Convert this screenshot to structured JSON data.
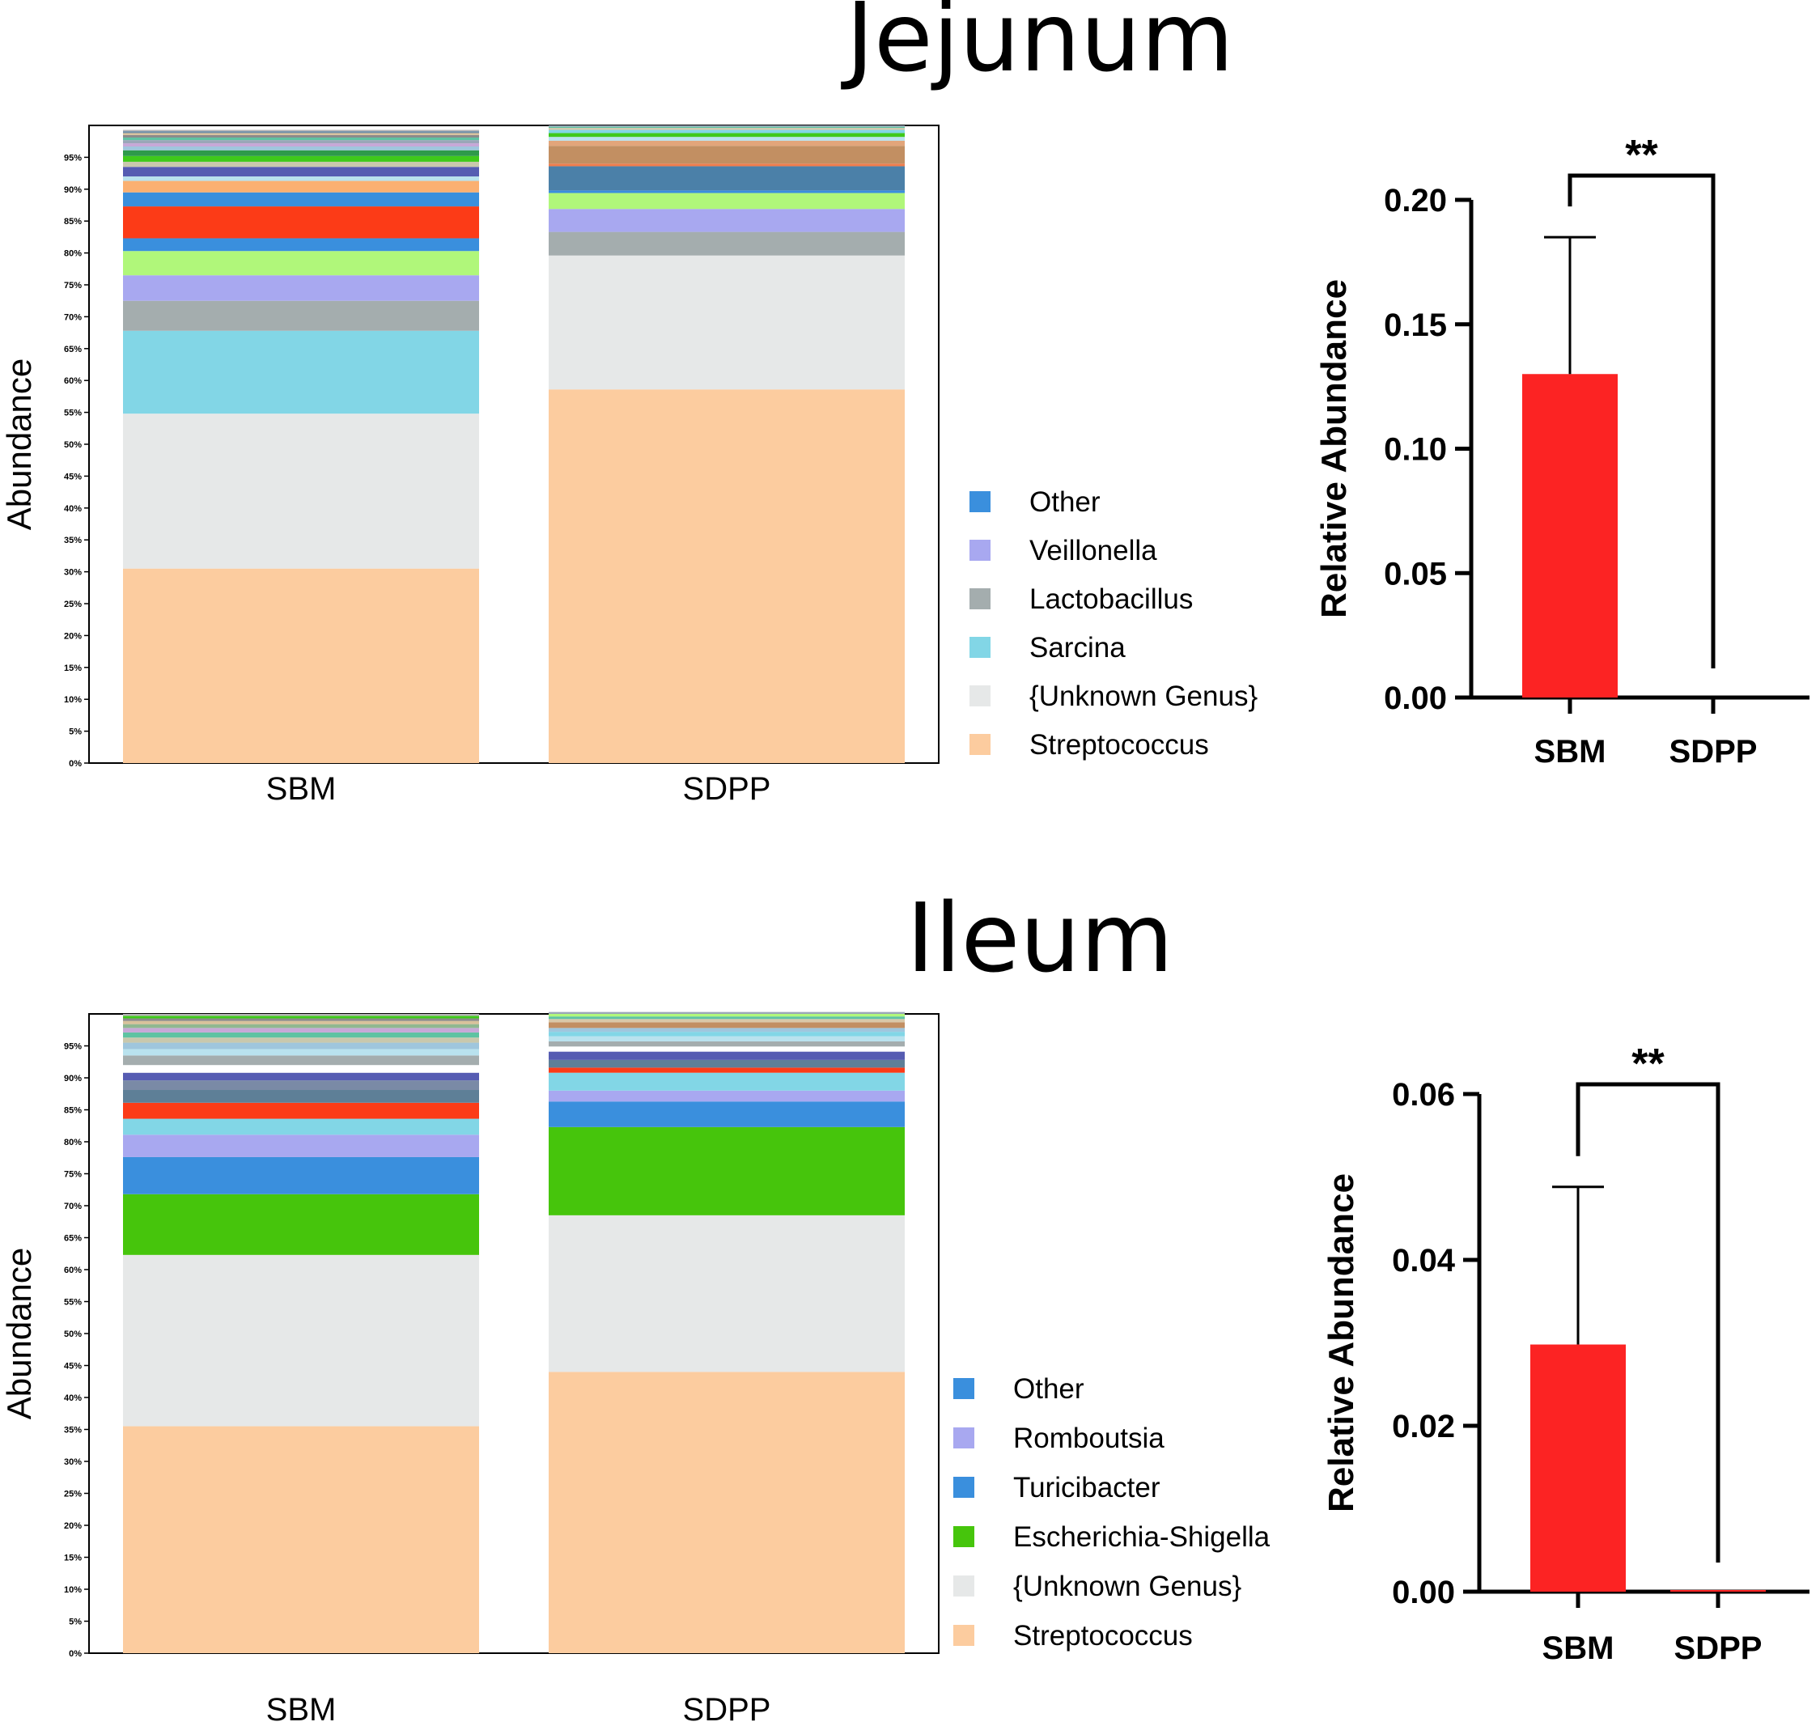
{
  "panels": [
    {
      "title": "Jejunum",
      "stacked": {
        "ylabel": "Abundance",
        "yticks": [
          "0%",
          "5%",
          "10%",
          "15%",
          "20%",
          "25%",
          "30%",
          "35%",
          "40%",
          "45%",
          "50%",
          "55%",
          "60%",
          "65%",
          "70%",
          "75%",
          "80%",
          "85%",
          "90%",
          "95%"
        ],
        "categories": [
          "SBM",
          "SDPP"
        ],
        "legend": [
          {
            "label": "Other",
            "color": "#3a8fdd"
          },
          {
            "label": "Veillonella",
            "color": "#a8a8f0"
          },
          {
            "label": "Lactobacillus",
            "color": "#a4adae"
          },
          {
            "label": "Sarcina",
            "color": "#82d6e6"
          },
          {
            "label": "{Unknown Genus}",
            "color": "#e6e8e8"
          },
          {
            "label": "Streptococcus",
            "color": "#fccc9f"
          }
        ],
        "stacks": [
          [
            {
              "v": 30.5,
              "c": "#fccc9f"
            },
            {
              "v": 24.3,
              "c": "#e6e8e8"
            },
            {
              "v": 13.0,
              "c": "#82d6e6"
            },
            {
              "v": 4.7,
              "c": "#a4adae"
            },
            {
              "v": 4.0,
              "c": "#a8a8f0"
            },
            {
              "v": 3.8,
              "c": "#b0f77a"
            },
            {
              "v": 2.0,
              "c": "#3a8fdd"
            },
            {
              "v": 5.0,
              "c": "#fc3b17"
            },
            {
              "v": 2.2,
              "c": "#3a8fdd"
            },
            {
              "v": 1.8,
              "c": "#fbb071"
            },
            {
              "v": 0.7,
              "c": "#b9e2ee"
            },
            {
              "v": 1.5,
              "c": "#565cb2"
            },
            {
              "v": 0.8,
              "c": "#c9c8ad"
            },
            {
              "v": 0.9,
              "c": "#3fc91a"
            },
            {
              "v": 0.9,
              "c": "#2e9a4a"
            },
            {
              "v": 0.6,
              "c": "#9fc6dd"
            },
            {
              "v": 0.5,
              "c": "#c7a8d7"
            },
            {
              "v": 0.5,
              "c": "#9aa6b8"
            },
            {
              "v": 0.4,
              "c": "#5ec3a2"
            },
            {
              "v": 0.4,
              "c": "#8a8a8a"
            },
            {
              "v": 0.3,
              "c": "#d8c19a"
            },
            {
              "v": 0.3,
              "c": "#6f8fa8"
            },
            {
              "v": 0.2,
              "c": "#b5b5b5"
            }
          ],
          [
            {
              "v": 58.6,
              "c": "#fccc9f"
            },
            {
              "v": 21.0,
              "c": "#e6e8e8"
            },
            {
              "v": 3.7,
              "c": "#a4adae"
            },
            {
              "v": 3.6,
              "c": "#a8a8f0"
            },
            {
              "v": 2.5,
              "c": "#b0f77a"
            },
            {
              "v": 0.4,
              "c": "#3a8fdd"
            },
            {
              "v": 3.8,
              "c": "#4b80a8"
            },
            {
              "v": 0.4,
              "c": "#f07c4c"
            },
            {
              "v": 2.8,
              "c": "#c28f62"
            },
            {
              "v": 0.8,
              "c": "#e2a57a"
            },
            {
              "v": 0.6,
              "c": "#b9e2ee"
            },
            {
              "v": 0.6,
              "c": "#3fc91a"
            },
            {
              "v": 0.5,
              "c": "#82d6e6"
            },
            {
              "v": 0.3,
              "c": "#d9c8a8"
            },
            {
              "v": 0.2,
              "c": "#5ec3a2"
            },
            {
              "v": 0.2,
              "c": "#9aa6b8"
            }
          ]
        ]
      },
      "bar": {
        "ylabel": "Relative Abundance",
        "ylim": [
          0,
          0.2
        ],
        "yticks": [
          "0.00",
          "0.05",
          "0.10",
          "0.15",
          "0.20"
        ],
        "categories": [
          "SBM",
          "SDPP"
        ],
        "values": [
          0.13,
          0.0
        ],
        "errors": [
          0.055,
          0.0
        ],
        "color": "#fc2323",
        "significance": "**"
      }
    },
    {
      "title": "Ileum",
      "stacked": {
        "ylabel": "Abundance",
        "yticks": [
          "0%",
          "5%",
          "10%",
          "15%",
          "20%",
          "25%",
          "30%",
          "35%",
          "40%",
          "45%",
          "50%",
          "55%",
          "60%",
          "65%",
          "70%",
          "75%",
          "80%",
          "85%",
          "90%",
          "95%"
        ],
        "categories": [
          "SBM",
          "SDPP"
        ],
        "legend": [
          {
            "label": "Other",
            "color": "#3a8fdd"
          },
          {
            "label": "Romboutsia",
            "color": "#a8a8f0"
          },
          {
            "label": "Turicibacter",
            "color": "#3a8fdd"
          },
          {
            "label": "Escherichia-Shigella",
            "color": "#46c50c"
          },
          {
            "label": "{Unknown Genus}",
            "color": "#e6e8e8"
          },
          {
            "label": "Streptococcus",
            "color": "#fccc9f"
          }
        ],
        "stacks": [
          [
            {
              "v": 35.5,
              "c": "#fccc9f"
            },
            {
              "v": 26.8,
              "c": "#e6e8e8"
            },
            {
              "v": 9.5,
              "c": "#46c50c"
            },
            {
              "v": 5.8,
              "c": "#3a8fdd"
            },
            {
              "v": 3.5,
              "c": "#a8a8f0"
            },
            {
              "v": 2.5,
              "c": "#82d6e6"
            },
            {
              "v": 2.5,
              "c": "#fc3b17"
            },
            {
              "v": 2.0,
              "c": "#5e7f97"
            },
            {
              "v": 1.5,
              "c": "#7a8aa6"
            },
            {
              "v": 1.2,
              "c": "#565cb2"
            },
            {
              "v": 1.2,
              "c": "#ffffff"
            },
            {
              "v": 1.5,
              "c": "#a4adae"
            },
            {
              "v": 1.0,
              "c": "#b9e2ee"
            },
            {
              "v": 1.0,
              "c": "#9fc6dd"
            },
            {
              "v": 0.8,
              "c": "#c9c8ad"
            },
            {
              "v": 0.8,
              "c": "#5ec3a2"
            },
            {
              "v": 0.7,
              "c": "#c7a8d7"
            },
            {
              "v": 0.6,
              "c": "#8fb890"
            },
            {
              "v": 0.5,
              "c": "#d8c19a"
            },
            {
              "v": 0.4,
              "c": "#8a8a8a"
            },
            {
              "v": 0.4,
              "c": "#3fc91a"
            },
            {
              "v": 0.3,
              "c": "#b5b5b5"
            }
          ],
          [
            {
              "v": 44.0,
              "c": "#fccc9f"
            },
            {
              "v": 24.5,
              "c": "#e6e8e8"
            },
            {
              "v": 13.8,
              "c": "#46c50c"
            },
            {
              "v": 4.0,
              "c": "#3a8fdd"
            },
            {
              "v": 1.7,
              "c": "#a8a8f0"
            },
            {
              "v": 2.8,
              "c": "#82d6e6"
            },
            {
              "v": 0.8,
              "c": "#fc3b17"
            },
            {
              "v": 1.2,
              "c": "#5e7f97"
            },
            {
              "v": 1.3,
              "c": "#565cb2"
            },
            {
              "v": 0.8,
              "c": "#ffffff"
            },
            {
              "v": 0.8,
              "c": "#a4adae"
            },
            {
              "v": 0.8,
              "c": "#b9e2ee"
            },
            {
              "v": 0.7,
              "c": "#82d6e6"
            },
            {
              "v": 0.6,
              "c": "#9fc6dd"
            },
            {
              "v": 0.9,
              "c": "#c28f62"
            },
            {
              "v": 0.5,
              "c": "#d9c8a8"
            },
            {
              "v": 0.4,
              "c": "#5ec3a2"
            },
            {
              "v": 0.4,
              "c": "#b0f77a"
            },
            {
              "v": 0.3,
              "c": "#9aa6b8"
            }
          ]
        ]
      },
      "bar": {
        "ylabel": "Relative Abundance",
        "ylim": [
          0,
          0.06
        ],
        "yticks": [
          "0.00",
          "0.02",
          "0.04",
          "0.06"
        ],
        "categories": [
          "SBM",
          "SDPP"
        ],
        "values": [
          0.0298,
          0.0002
        ],
        "errors": [
          0.019,
          0.0
        ],
        "color": "#fc2323",
        "significance": "**"
      }
    }
  ],
  "chart_data": [
    {
      "type": "bar",
      "stacked": true,
      "title": "Jejunum",
      "xlabel": "",
      "ylabel": "Abundance",
      "ylim": [
        0,
        100
      ],
      "categories": [
        "SBM",
        "SDPP"
      ],
      "series": [
        {
          "name": "Streptococcus",
          "values": [
            30.5,
            58.6
          ]
        },
        {
          "name": "{Unknown Genus}",
          "values": [
            24.3,
            21.0
          ]
        },
        {
          "name": "Sarcina",
          "values": [
            13.0,
            0.0
          ]
        },
        {
          "name": "Lactobacillus",
          "values": [
            4.7,
            3.7
          ]
        },
        {
          "name": "Veillonella",
          "values": [
            4.0,
            3.6
          ]
        }
      ],
      "legend": [
        "Other",
        "Veillonella",
        "Lactobacillus",
        "Sarcina",
        "{Unknown Genus}",
        "Streptococcus"
      ]
    },
    {
      "type": "bar",
      "title": "Jejunum",
      "xlabel": "",
      "ylabel": "Relative Abundance",
      "ylim": [
        0,
        0.2
      ],
      "categories": [
        "SBM",
        "SDPP"
      ],
      "values": [
        0.13,
        0.0
      ],
      "error_bars": [
        0.055,
        0.0
      ],
      "annotations": [
        "**"
      ]
    },
    {
      "type": "bar",
      "stacked": true,
      "title": "Ileum",
      "xlabel": "",
      "ylabel": "Abundance",
      "ylim": [
        0,
        100
      ],
      "categories": [
        "SBM",
        "SDPP"
      ],
      "series": [
        {
          "name": "Streptococcus",
          "values": [
            35.5,
            44.0
          ]
        },
        {
          "name": "{Unknown Genus}",
          "values": [
            26.8,
            24.5
          ]
        },
        {
          "name": "Escherichia-Shigella",
          "values": [
            9.5,
            13.8
          ]
        },
        {
          "name": "Turicibacter",
          "values": [
            5.8,
            4.0
          ]
        },
        {
          "name": "Romboutsia",
          "values": [
            3.5,
            1.7
          ]
        }
      ],
      "legend": [
        "Other",
        "Romboutsia",
        "Turicibacter",
        "Escherichia-Shigella",
        "{Unknown Genus}",
        "Streptococcus"
      ]
    },
    {
      "type": "bar",
      "title": "Ileum",
      "xlabel": "",
      "ylabel": "Relative Abundance",
      "ylim": [
        0,
        0.06
      ],
      "categories": [
        "SBM",
        "SDPP"
      ],
      "values": [
        0.0298,
        0.0002
      ],
      "error_bars": [
        0.019,
        0.0
      ],
      "annotations": [
        "**"
      ]
    }
  ]
}
